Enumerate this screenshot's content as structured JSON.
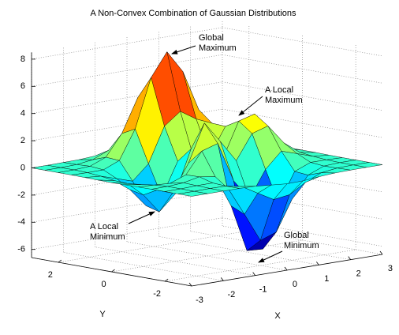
{
  "chart_data": {
    "type": "surface",
    "title": "A Non-Convex Combination of Gaussian Distributions",
    "xlabel": "X",
    "ylabel": "Y",
    "x": [
      -3,
      -2.5,
      -2,
      -1.5,
      -1,
      -0.5,
      0,
      0.5,
      1,
      1.5,
      2,
      2.5,
      3
    ],
    "y": [
      -3,
      -2.5,
      -2,
      -1.5,
      -1,
      -0.5,
      0,
      0.5,
      1,
      1.5,
      2,
      2.5,
      3
    ],
    "z": [
      [
        0,
        0,
        0,
        0,
        -0.03,
        -0.14,
        -0.24,
        -0.22,
        -0.11,
        -0.03,
        -0.01,
        0,
        0
      ],
      [
        0,
        0,
        0.02,
        0,
        -0.23,
        -0.91,
        -1.57,
        -1.41,
        -0.69,
        -0.18,
        -0.03,
        0,
        0
      ],
      [
        0,
        0.01,
        0.05,
        0.05,
        -0.59,
        -2.63,
        -4.75,
        -4.34,
        -2.1,
        -0.53,
        -0.06,
        0,
        0
      ],
      [
        0,
        0.01,
        0.08,
        0.33,
        0.15,
        -2.19,
        -5.68,
        -5.76,
        -2.63,
        -0.44,
        0.04,
        0.03,
        0
      ],
      [
        -0.01,
        -0.06,
        -0.13,
        0.3,
        1.86,
        2.22,
        -0.72,
        -2.22,
        -0.27,
        0.88,
        0.5,
        0.11,
        0.01
      ],
      [
        -0.02,
        -0.2,
        -0.8,
        -1.21,
        0.8,
        3.55,
        2,
        0.39,
        2.2,
        2.56,
        1.12,
        0.24,
        0.03
      ],
      [
        -0.04,
        -0.3,
        -1.33,
        -2.77,
        -1.65,
        1.48,
        0.98,
        0.38,
        2.94,
        3.27,
        1.41,
        0.3,
        0.03
      ],
      [
        -0.03,
        -0.25,
        -1.12,
        -2.49,
        -2,
        0.39,
        0.46,
        0.38,
        2.38,
        2.56,
        1.09,
        0.23,
        0.03
      ],
      [
        -0.01,
        -0.11,
        -0.48,
        -0.86,
        0.23,
        2.79,
        3.69,
        2.94,
        2.43,
        1.59,
        0.58,
        0.11,
        0.01
      ],
      [
        0,
        -0.02,
        -0.01,
        0.48,
        2.61,
        6.2,
        7.9,
        6.25,
        3.25,
        1.19,
        0.29,
        0.05,
        0
      ],
      [
        0,
        0.01,
        0.08,
        0.55,
        2.1,
        4.55,
        5.85,
        4.56,
        2.21,
        0.68,
        0.13,
        0.02,
        0
      ],
      [
        0,
        0,
        0.03,
        0.19,
        0.69,
        1.47,
        1.88,
        1.47,
        0.7,
        0.21,
        0.04,
        0,
        0
      ],
      [
        0,
        0,
        0.01,
        0.03,
        0.11,
        0.23,
        0.3,
        0.23,
        0.11,
        0.03,
        0.01,
        0,
        0
      ]
    ],
    "xlim": [
      -3,
      3
    ],
    "ylim": [
      -3,
      3
    ],
    "zlim": [
      -6.6,
      8.5
    ],
    "xticks": [
      -3,
      -2,
      -1,
      0,
      1,
      2,
      3
    ],
    "yticks": [
      -2,
      0,
      2
    ],
    "zticks": [
      -6,
      -4,
      -2,
      0,
      2,
      4,
      6,
      8
    ],
    "grid": true,
    "colormap": "jet",
    "annotations": [
      {
        "lines": [
          "Global",
          "Maximum"
        ]
      },
      {
        "lines": [
          "A Local",
          "Maximum"
        ]
      },
      {
        "lines": [
          "A Local",
          "Minimum"
        ]
      },
      {
        "lines": [
          "Global",
          "Minimum"
        ]
      }
    ]
  }
}
